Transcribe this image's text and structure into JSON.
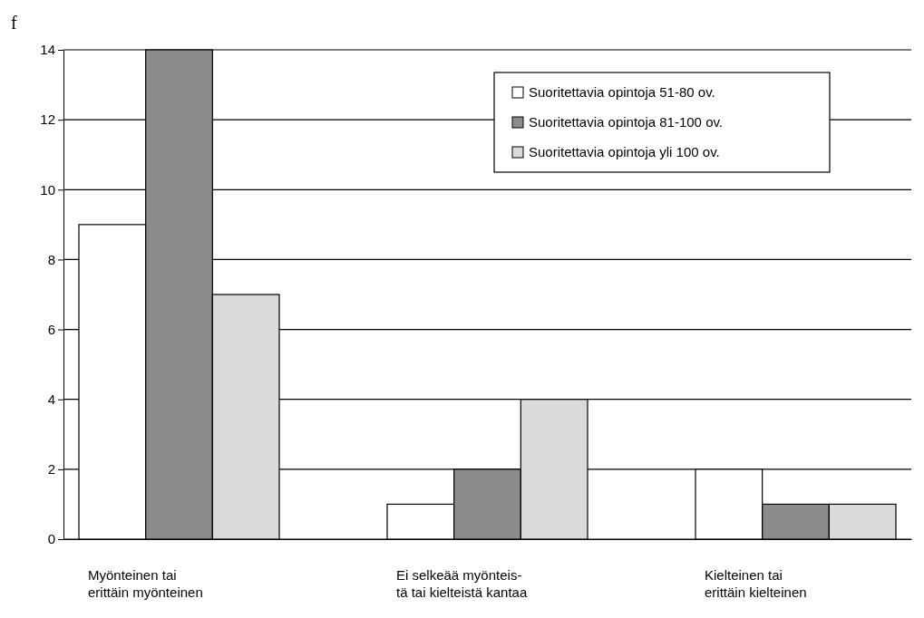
{
  "chart_data": {
    "type": "bar",
    "ylabel": "f",
    "categories": [
      "Myönteinen tai\nerittäin myönteinen",
      "Ei selkeää myönteis-\ntä tai kielteistä kantaa",
      "Kielteinen tai\nerittäin kielteinen"
    ],
    "series": [
      {
        "name": "Suoritettavia opintoja 51-80 ov.",
        "color": "#ffffff",
        "values": [
          9,
          1,
          2
        ]
      },
      {
        "name": "Suoritettavia opintoja 81-100 ov.",
        "color": "#8c8c8c",
        "values": [
          14,
          2,
          1
        ]
      },
      {
        "name": "Suoritettavia opintoja yli 100 ov.",
        "color": "#dadada",
        "values": [
          7,
          4,
          1
        ]
      }
    ],
    "ylim": [
      0,
      14
    ],
    "yticks": [
      0,
      2,
      4,
      6,
      8,
      10,
      12,
      14
    ],
    "grid": "y",
    "legend": "top right"
  }
}
